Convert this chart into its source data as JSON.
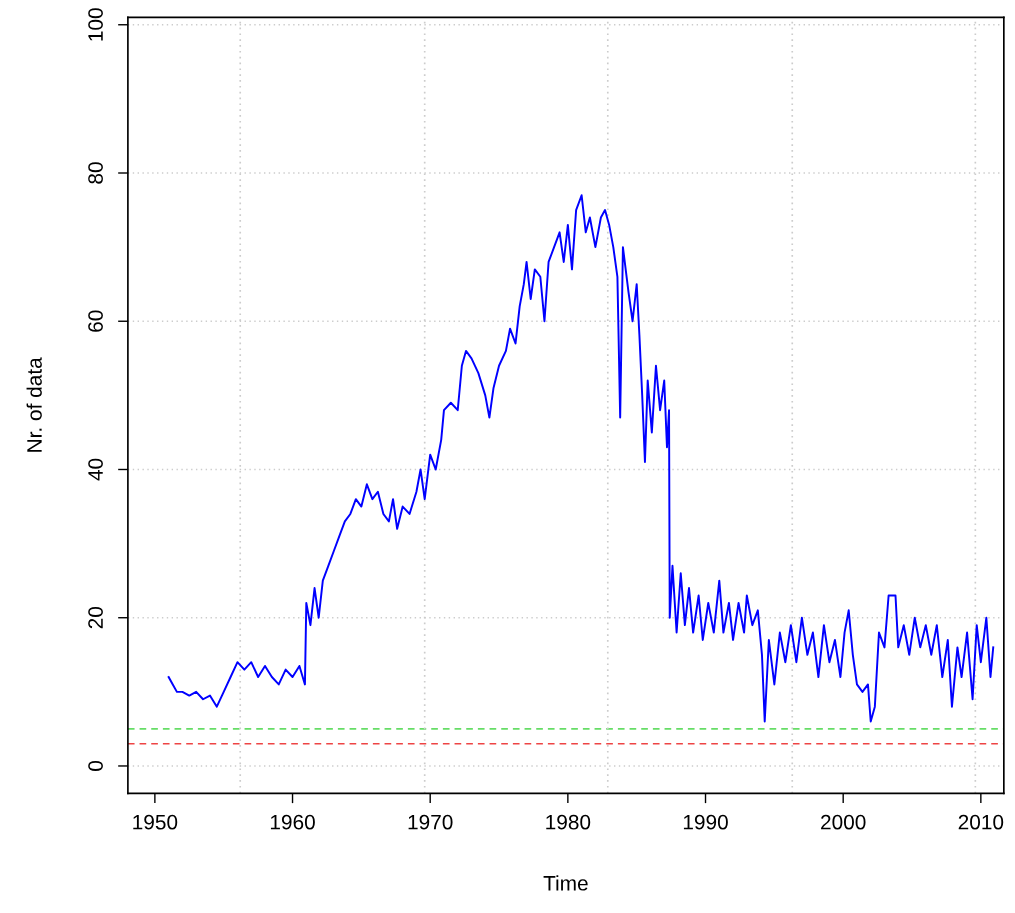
{
  "chart_data": {
    "type": "line",
    "xlabel": "Time",
    "ylabel": "Nr. of data",
    "xlim": [
      1948.04,
      2011.67
    ],
    "xticks": [
      1950,
      1960,
      1970,
      1980,
      1990,
      2000,
      2010
    ],
    "ylim": [
      -3.7,
      101
    ],
    "yticks": [
      0,
      20,
      40,
      60,
      80,
      100
    ],
    "grid": "y",
    "line_style": "solid",
    "marker": "none",
    "ref_lines": [
      {
        "axis": "y",
        "value": 5,
        "color": "#66dd66",
        "line_style": "dashed"
      },
      {
        "axis": "y",
        "value": 3,
        "color": "#ee4444",
        "line_style": "dashed"
      },
      {
        "axis": "x",
        "value": 1956.2,
        "color": "#cccccc",
        "line_style": "dotted"
      },
      {
        "axis": "x",
        "value": 1969.6,
        "color": "#cccccc",
        "line_style": "dotted"
      },
      {
        "axis": "x",
        "value": 1982.9,
        "color": "#cccccc",
        "line_style": "dotted"
      },
      {
        "axis": "x",
        "value": 1996.3,
        "color": "#cccccc",
        "line_style": "dotted"
      },
      {
        "axis": "x",
        "value": 2009.6,
        "color": "#cccccc",
        "line_style": "dotted"
      }
    ],
    "series": [
      {
        "color": "#0000ff",
        "x": [
          1951.0,
          1951.3,
          1951.6,
          1952,
          1952.5,
          1953,
          1953.5,
          1954,
          1954.5,
          1955,
          1955.5,
          1956,
          1956.5,
          1957,
          1957.5,
          1958,
          1958.5,
          1959,
          1959.5,
          1960,
          1960.5,
          1960.9,
          1961.0,
          1961.3,
          1961.6,
          1961.9,
          1962.2,
          1962.6,
          1963,
          1963.4,
          1963.8,
          1964.2,
          1964.6,
          1965,
          1965.4,
          1965.8,
          1966.2,
          1966.6,
          1967,
          1967.3,
          1967.6,
          1968,
          1968.5,
          1969,
          1969.3,
          1969.6,
          1970,
          1970.4,
          1970.8,
          1971,
          1971.5,
          1972,
          1972.3,
          1972.6,
          1973,
          1973.5,
          1974,
          1974.3,
          1974.6,
          1975,
          1975.5,
          1975.8,
          1976.2,
          1976.5,
          1976.8,
          1977,
          1977.3,
          1977.6,
          1978,
          1978.3,
          1978.6,
          1979,
          1979.4,
          1979.7,
          1980,
          1980.3,
          1980.6,
          1981,
          1981.3,
          1981.6,
          1982,
          1982.4,
          1982.7,
          1983,
          1983.3,
          1983.6,
          1983.8,
          1984,
          1984.4,
          1984.7,
          1985,
          1985.2,
          1985.4,
          1985.6,
          1985.8,
          1986.1,
          1986.4,
          1986.7,
          1987,
          1987.2,
          1987.35,
          1987.4,
          1987.6,
          1987.9,
          1988.2,
          1988.5,
          1988.8,
          1989.1,
          1989.5,
          1989.8,
          1990.2,
          1990.6,
          1991,
          1991.3,
          1991.7,
          1992,
          1992.4,
          1992.8,
          1993,
          1993.4,
          1993.8,
          1994.1,
          1994.3,
          1994.6,
          1995,
          1995.4,
          1995.8,
          1996.2,
          1996.6,
          1997,
          1997.4,
          1997.8,
          1998.2,
          1998.6,
          1999,
          1999.4,
          1999.8,
          2000.1,
          2000.4,
          2000.7,
          2001,
          2001.4,
          2001.8,
          2002,
          2002.3,
          2002.6,
          2003,
          2003.3,
          2003.8,
          2004,
          2004.4,
          2004.8,
          2005.2,
          2005.6,
          2006,
          2006.4,
          2006.8,
          2007.2,
          2007.6,
          2007.9,
          2008.3,
          2008.6,
          2009,
          2009.4,
          2009.7,
          2010,
          2010.4,
          2010.7,
          2010.9
        ],
        "values": [
          12,
          11,
          10,
          10,
          9.5,
          10,
          9,
          9.5,
          8,
          10,
          12,
          14,
          13,
          14,
          12,
          13.5,
          12,
          11,
          13,
          12,
          13.5,
          11,
          22,
          19,
          24,
          20,
          25,
          27,
          29,
          31,
          33,
          34,
          36,
          35,
          38,
          36,
          37,
          34,
          33,
          36,
          32,
          35,
          34,
          37,
          40,
          36,
          42,
          40,
          44,
          48,
          49,
          48,
          54,
          56,
          55,
          53,
          50,
          47,
          51,
          54,
          56,
          59,
          57,
          62,
          65,
          68,
          63,
          67,
          66,
          60,
          68,
          70,
          72,
          68,
          73,
          67,
          75,
          77,
          72,
          74,
          70,
          74,
          75,
          73,
          70,
          66,
          47,
          70,
          64,
          60,
          65,
          58,
          50,
          41,
          52,
          45,
          54,
          48,
          52,
          43,
          48,
          20,
          27,
          18,
          26,
          19,
          24,
          18,
          23,
          17,
          22,
          18,
          25,
          18,
          22,
          17,
          22,
          18,
          23,
          19,
          21,
          15,
          6,
          17,
          11,
          18,
          14,
          19,
          14,
          20,
          15,
          18,
          12,
          19,
          14,
          17,
          12,
          18,
          21,
          15,
          11,
          10,
          11,
          6,
          8,
          18,
          16,
          23,
          23,
          16,
          19,
          15,
          20,
          16,
          19,
          15,
          19,
          12,
          17,
          8,
          16,
          12,
          18,
          9,
          19,
          14,
          20,
          12,
          16
        ]
      }
    ]
  }
}
